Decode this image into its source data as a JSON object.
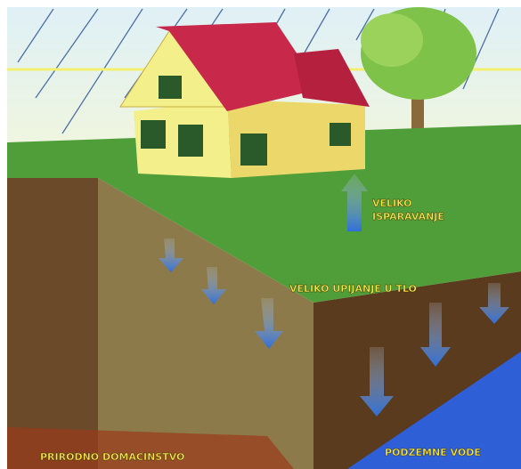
{
  "evaporation": {
    "lines": [
      "VELIKO",
      "ISPARAVANJE"
    ]
  },
  "infiltration": "VELIKO UPIJANJE U TLO",
  "household": "PRIRODNO DOMACINSTVO",
  "groundwater": "PODZEMNE VODE"
}
